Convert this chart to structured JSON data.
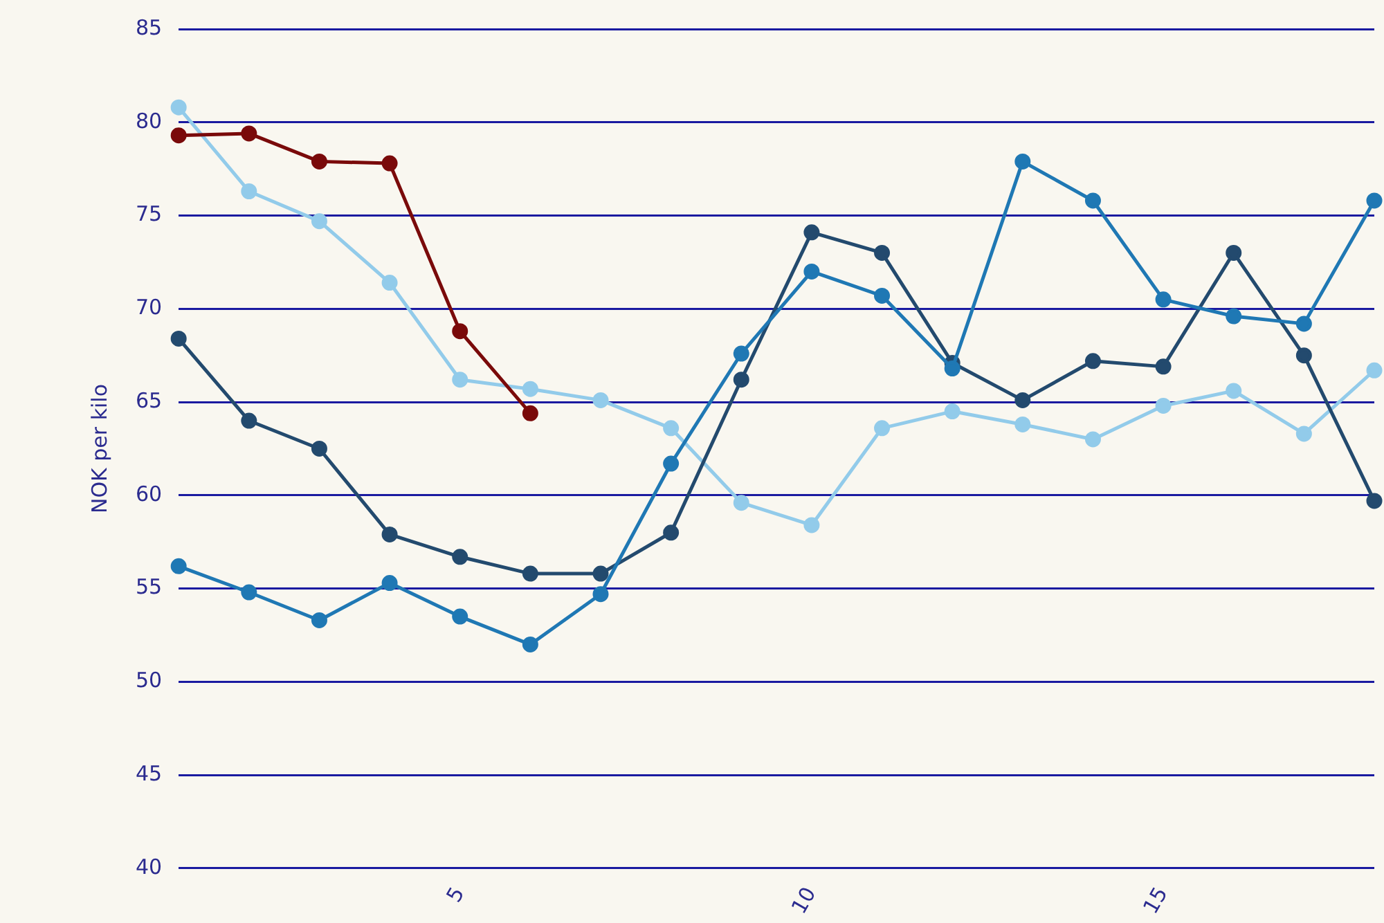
{
  "chart_data": {
    "type": "line",
    "ylabel": "NOK per kilo",
    "x": [
      1,
      2,
      3,
      4,
      5,
      6,
      7,
      8,
      9,
      10,
      11,
      12,
      13,
      14,
      15,
      16,
      17,
      18
    ],
    "series": [
      {
        "color": "#92cbea",
        "values": [
          80.8,
          76.3,
          74.7,
          71.4,
          66.2,
          65.7,
          65.1,
          63.6,
          59.6,
          58.4,
          63.6,
          64.5,
          63.8,
          63.0,
          64.8,
          65.6,
          63.3,
          66.7
        ]
      },
      {
        "color": "#234a6e",
        "values": [
          68.4,
          64.0,
          62.5,
          57.9,
          56.7,
          55.8,
          55.8,
          58.0,
          66.2,
          74.1,
          73.0,
          67.1,
          65.1,
          67.2,
          66.9,
          73.0,
          67.5,
          59.7
        ]
      },
      {
        "color": "#1f78b4",
        "values": [
          56.2,
          54.8,
          53.3,
          55.3,
          53.5,
          52.0,
          54.7,
          61.7,
          67.6,
          72.0,
          70.7,
          66.8,
          77.9,
          75.8,
          70.5,
          69.6,
          69.2,
          75.8
        ]
      },
      {
        "color": "#7a0a0a",
        "values": [
          79.3,
          79.4,
          77.9,
          77.8,
          68.8,
          64.4,
          null,
          null,
          null,
          null,
          null,
          null,
          null,
          null,
          null,
          null,
          null,
          null
        ]
      }
    ],
    "xlim": [
      1,
      18
    ],
    "xticks": [
      5,
      10,
      15
    ],
    "ylim": [
      40,
      85
    ],
    "yticks": [
      40,
      45,
      50,
      55,
      60,
      65,
      70,
      75,
      80,
      85
    ],
    "grid": "y",
    "legend": false,
    "marker": "circle",
    "line_style": "solid"
  }
}
